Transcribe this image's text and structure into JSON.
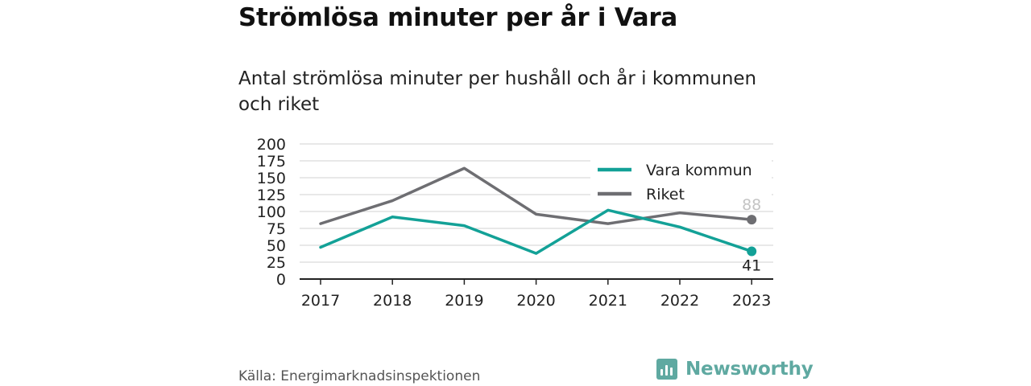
{
  "header": {
    "title": "Strömlösa minuter per år i Vara",
    "subtitle": "Antal strömlösa minuter per hushåll och år i kommunen och riket"
  },
  "chart_data": {
    "type": "line",
    "x": [
      "2017",
      "2018",
      "2019",
      "2020",
      "2021",
      "2022",
      "2023"
    ],
    "series": [
      {
        "name": "Vara kommun",
        "color": "#13a197",
        "values": [
          47,
          92,
          79,
          38,
          102,
          77,
          41
        ],
        "end_label": "41"
      },
      {
        "name": "Riket",
        "color": "#6e6e72",
        "values": [
          82,
          116,
          164,
          96,
          82,
          98,
          88
        ],
        "end_label": "88"
      }
    ],
    "ylim": [
      0,
      200
    ],
    "yticks": [
      "0",
      "25",
      "50",
      "75",
      "100",
      "125",
      "150",
      "175",
      "200"
    ],
    "grid": true,
    "legend_position": "top-right"
  },
  "footer": {
    "source": "Källa: Energimarknadsinspektionen",
    "brand": "Newsworthy"
  },
  "colors": {
    "brand": "#5fa9a1",
    "grid": "#d9d9d9",
    "axis": "#222222"
  }
}
